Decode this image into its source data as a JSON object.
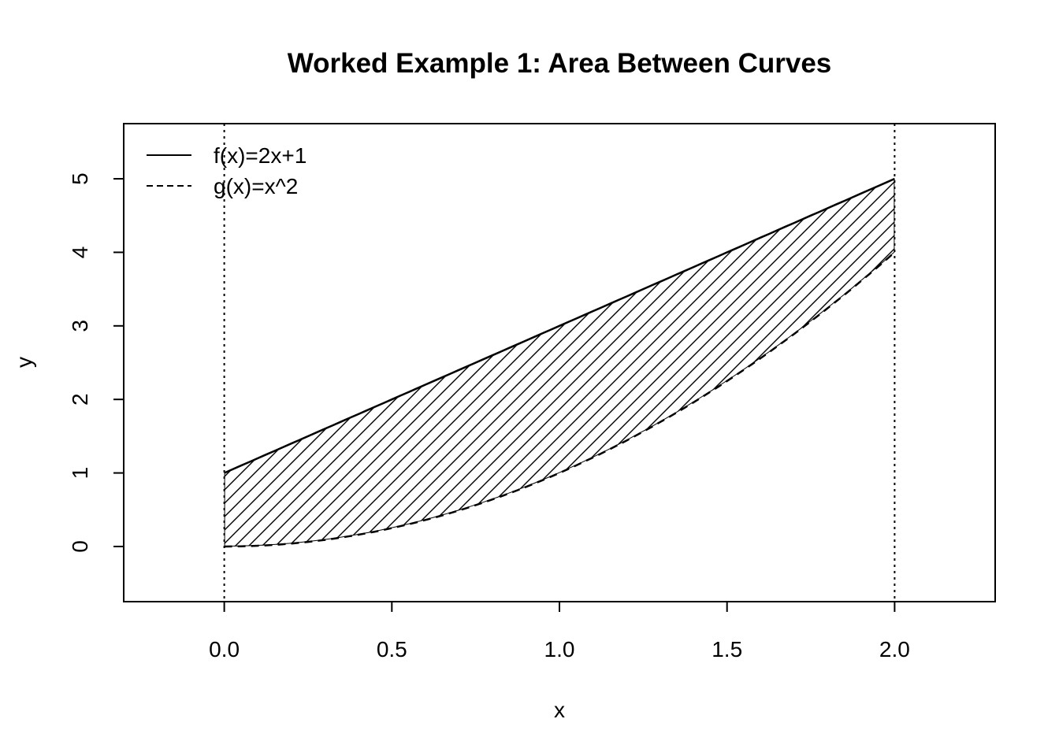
{
  "chart_data": {
    "type": "area",
    "title": "Worked Example 1: Area Between Curves",
    "xlabel": "x",
    "ylabel": "y",
    "xlim": [
      -0.3,
      2.3
    ],
    "ylim": [
      -0.75,
      5.75
    ],
    "x_ticks": [
      0.0,
      0.5,
      1.0,
      1.5,
      2.0
    ],
    "x_tick_labels": [
      "0.0",
      "0.5",
      "1.0",
      "1.5",
      "2.0"
    ],
    "y_ticks": [
      0,
      1,
      2,
      3,
      4,
      5
    ],
    "y_tick_labels": [
      "0",
      "1",
      "2",
      "3",
      "4",
      "5"
    ],
    "grid": false,
    "legend_position": "top-left",
    "series": [
      {
        "name": "f(x)=2x+1",
        "line_style": "solid",
        "color": "#000000",
        "x": [
          0.0,
          0.25,
          0.5,
          0.75,
          1.0,
          1.25,
          1.5,
          1.75,
          2.0
        ],
        "values": [
          1.0,
          1.5,
          2.0,
          2.5,
          3.0,
          3.5,
          4.0,
          4.5,
          5.0
        ]
      },
      {
        "name": "g(x)=x^2",
        "line_style": "dashed",
        "color": "#000000",
        "x": [
          0.0,
          0.25,
          0.5,
          0.75,
          1.0,
          1.25,
          1.5,
          1.75,
          2.0
        ],
        "values": [
          0.0,
          0.0625,
          0.25,
          0.5625,
          1.0,
          1.5625,
          2.25,
          3.0625,
          4.0
        ]
      }
    ],
    "shaded_region": {
      "between": [
        "f(x)=2x+1",
        "g(x)=x^2"
      ],
      "x_range": [
        0.0,
        2.0
      ],
      "fill": "diagonal-hatch"
    },
    "vertical_lines": [
      {
        "x": 0.0,
        "line_style": "dotted"
      },
      {
        "x": 2.0,
        "line_style": "dotted"
      }
    ]
  }
}
